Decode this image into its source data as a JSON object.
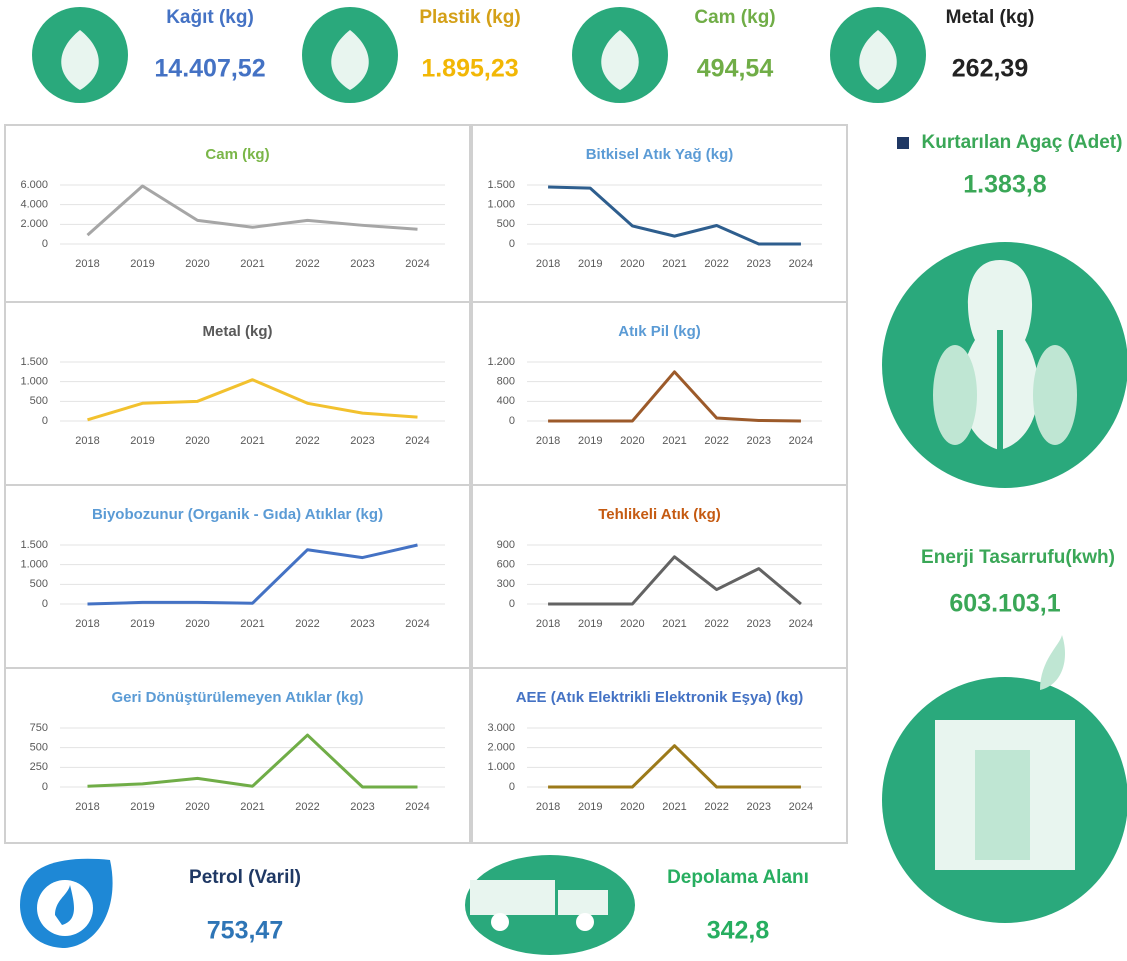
{
  "kpis": [
    {
      "label": "Kağıt (kg)",
      "value": "14.407,52"
    },
    {
      "label": "Plastik (kg)",
      "value": "1.895,23"
    },
    {
      "label": "Cam (kg)",
      "value": "494,54"
    },
    {
      "label": "Metal (kg)",
      "value": "262,39"
    }
  ],
  "side": [
    {
      "label": "Kurtarılan Agaç (Adet)",
      "value": "1.383,8"
    },
    {
      "label": "Enerji Tasarrufu(kwh)",
      "value": "603.103,1"
    }
  ],
  "bottom": [
    {
      "label": "Petrol (Varil)",
      "value": "753,47"
    },
    {
      "label": "Depolama Alanı",
      "value": "342,8"
    }
  ],
  "chart_data": [
    {
      "type": "line",
      "title": "Cam (kg)",
      "categories": [
        "2018",
        "2019",
        "2020",
        "2021",
        "2022",
        "2023",
        "2024"
      ],
      "values": [
        900,
        5900,
        2400,
        1700,
        2400,
        1900,
        1500
      ],
      "color": "#a6a6a6",
      "ylim": [
        0,
        6000
      ],
      "yticks": [
        0,
        {
          "value": 2000,
          "label": "2.000"
        },
        {
          "value": 4000,
          "label": "4.000"
        },
        {
          "value": 6000,
          "label": "6.000"
        }
      ],
      "grid": true
    },
    {
      "type": "line",
      "title": "Bitkisel Atık Yağ (kg)",
      "categories": [
        "2018",
        "2019",
        "2020",
        "2021",
        "2022",
        "2023",
        "2024"
      ],
      "values": [
        1450,
        1420,
        460,
        200,
        470,
        0,
        0
      ],
      "color": "#2e5e8e",
      "ylim": [
        0,
        1500
      ],
      "yticks": [
        0,
        500,
        {
          "value": 1000,
          "label": "1.000"
        },
        {
          "value": 1500,
          "label": "1.500"
        }
      ],
      "grid": true
    },
    {
      "type": "line",
      "title": "Metal (kg)",
      "categories": [
        "2018",
        "2019",
        "2020",
        "2021",
        "2022",
        "2023",
        "2024"
      ],
      "values": [
        30,
        450,
        500,
        1050,
        450,
        200,
        100
      ],
      "color": "#f2c12e",
      "ylim": [
        0,
        1500
      ],
      "yticks": [
        0,
        500,
        {
          "value": 1000,
          "label": "1.000"
        },
        {
          "value": 1500,
          "label": "1.500"
        }
      ],
      "grid": true
    },
    {
      "type": "line",
      "title": "Atık Pil (kg)",
      "categories": [
        "2018",
        "2019",
        "2020",
        "2021",
        "2022",
        "2023",
        "2024"
      ],
      "values": [
        0,
        0,
        0,
        1000,
        60,
        10,
        0
      ],
      "color": "#9c5a2a",
      "ylim": [
        0,
        1200
      ],
      "yticks": [
        0,
        400,
        800,
        {
          "value": 1200,
          "label": "1.200"
        }
      ],
      "grid": true
    },
    {
      "type": "line",
      "title": "Biyobozunur (Organik - Gıda) Atıklar (kg)",
      "categories": [
        "2018",
        "2019",
        "2020",
        "2021",
        "2022",
        "2023",
        "2024"
      ],
      "values": [
        0,
        40,
        40,
        20,
        1380,
        1180,
        1500
      ],
      "color": "#4472c4",
      "ylim": [
        0,
        1500
      ],
      "yticks": [
        0,
        500,
        {
          "value": 1000,
          "label": "1.000"
        },
        {
          "value": 1500,
          "label": "1.500"
        }
      ],
      "grid": true
    },
    {
      "type": "line",
      "title": "Tehlikeli Atık (kg)",
      "categories": [
        "2018",
        "2019",
        "2020",
        "2021",
        "2022",
        "2023",
        "2024"
      ],
      "values": [
        0,
        0,
        0,
        720,
        220,
        540,
        0
      ],
      "color": "#636363",
      "ylim": [
        0,
        900
      ],
      "yticks": [
        0,
        300,
        600,
        900
      ],
      "grid": true
    },
    {
      "type": "line",
      "title": "Geri Dönüştürülemeyen  Atıklar (kg)",
      "categories": [
        "2018",
        "2019",
        "2020",
        "2021",
        "2022",
        "2023",
        "2024"
      ],
      "values": [
        10,
        40,
        110,
        10,
        660,
        0,
        0
      ],
      "color": "#70ad47",
      "ylim": [
        0,
        750
      ],
      "yticks": [
        0,
        250,
        500,
        750
      ],
      "grid": true
    },
    {
      "type": "line",
      "title": "AEE (Atık Elektrikli Elektronik Eşya) (kg)",
      "categories": [
        "2018",
        "2019",
        "2020",
        "2021",
        "2022",
        "2023",
        "2024"
      ],
      "values": [
        0,
        0,
        0,
        2100,
        0,
        0,
        0
      ],
      "color": "#9c7a1a",
      "ylim": [
        0,
        3000
      ],
      "yticks": [
        0,
        {
          "value": 1000,
          "label": "1.000"
        },
        {
          "value": 2000,
          "label": "2.000"
        },
        {
          "value": 3000,
          "label": "3.000"
        }
      ],
      "grid": true
    }
  ]
}
